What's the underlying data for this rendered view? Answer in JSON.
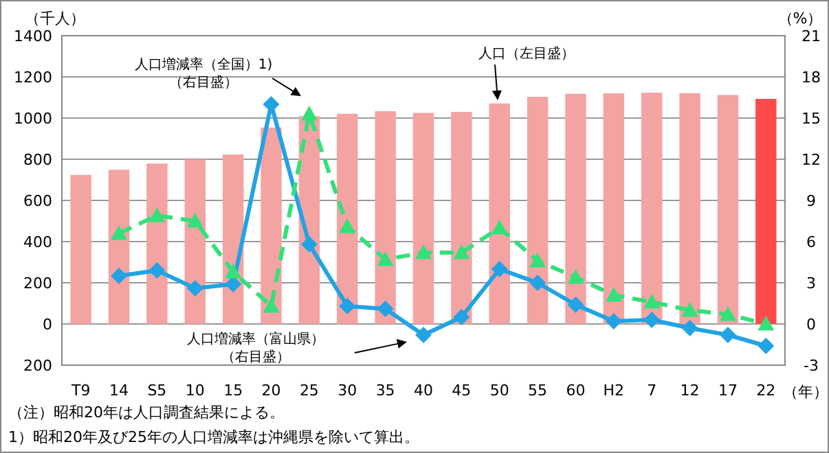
{
  "chart_data": {
    "type": "bar",
    "xlabel": "（年）",
    "ylabel": "（千人）",
    "y2label": "（%）",
    "categories": [
      "T9",
      "14",
      "S5",
      "10",
      "15",
      "20",
      "25",
      "30",
      "35",
      "40",
      "45",
      "50",
      "55",
      "60",
      "H2",
      "7",
      "12",
      "17",
      "22"
    ],
    "ylim": [
      -200,
      1400
    ],
    "yticks": [
      {
        "value": -200,
        "label": "200"
      },
      0,
      200,
      400,
      600,
      800,
      1000,
      1200,
      1400
    ],
    "y2lim": [
      -3,
      21
    ],
    "y2ticks": [
      -3,
      0,
      3,
      6,
      9,
      12,
      15,
      18,
      21
    ],
    "grid": "y",
    "series": [
      {
        "colors": [
          "#f4a3a3",
          "#f4a3a3",
          "#f4a3a3",
          "#f4a3a3",
          "#f4a3a3",
          "#f4a3a3",
          "#f4a3a3",
          "#f4a3a3",
          "#f4a3a3",
          "#f4a3a3",
          "#f4a3a3",
          "#f4a3a3",
          "#f4a3a3",
          "#f4a3a3",
          "#f4a3a3",
          "#f4a3a3",
          "#f4a3a3",
          "#f4a3a3",
          "#ff4a4a"
        ],
        "values": [
          724,
          749,
          779,
          799,
          823,
          954,
          1009,
          1021,
          1033,
          1025,
          1030,
          1071,
          1103,
          1118,
          1120,
          1123,
          1121,
          1112,
          1093
        ]
      },
      {
        "type": "line",
        "axis": "y2",
        "color": "#22a3e3",
        "marker": "diamond",
        "line_style": "solid",
        "values": [
          null,
          3.5,
          3.9,
          2.6,
          2.9,
          16.0,
          5.8,
          1.3,
          1.1,
          -0.8,
          0.5,
          4.0,
          3.0,
          1.4,
          0.2,
          0.3,
          -0.3,
          -0.8,
          -1.6
        ]
      },
      {
        "type": "line",
        "axis": "y2",
        "color": "#33e07a",
        "marker": "triangle",
        "line_style": "dashed",
        "values": [
          null,
          6.6,
          7.9,
          7.5,
          3.8,
          1.3,
          15.3,
          7.1,
          4.7,
          5.2,
          5.2,
          7.0,
          4.6,
          3.4,
          2.1,
          1.6,
          1.0,
          0.7,
          0.0
        ]
      }
    ],
    "annotations": [
      "人口増減率（全国）1)",
      "（右目盛）",
      "人口（左目盛）",
      "人口増減率（富山県）",
      "（右目盛）",
      "（注）昭和20年は人口調査結果による。",
      "1）昭和20年及び25年の人口増減率は沖縄県を除いて算出。"
    ]
  }
}
